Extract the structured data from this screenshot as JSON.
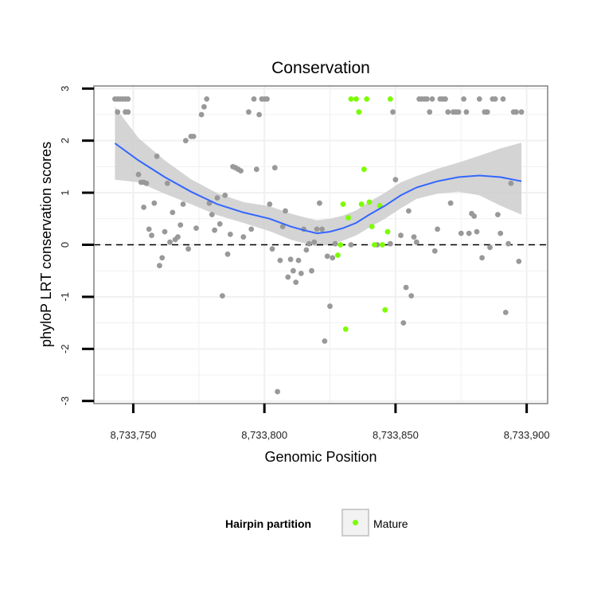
{
  "chart_data": {
    "type": "scatter",
    "title": "Conservation",
    "xlabel": "Genomic Position",
    "ylabel": "phyloP LRT conservation scores",
    "xlim": [
      8733735,
      8733908
    ],
    "ylim": [
      -3.05,
      3.05
    ],
    "x_ticks": [
      8733750,
      8733800,
      8733850,
      8733900
    ],
    "x_tick_labels": [
      "8,733,750",
      "8,733,800",
      "8,733,850",
      "8,733,900"
    ],
    "y_ticks": [
      -3,
      -2,
      -1,
      0,
      1,
      2,
      3
    ],
    "y_tick_labels": [
      "-3",
      "-2",
      "-1",
      "0",
      "1",
      "2",
      "3"
    ],
    "grid": true,
    "reference_line": {
      "y": 0,
      "style": "dashed",
      "color": "#000000"
    },
    "legend": {
      "title": "Hairpin partition",
      "placement": "bottom",
      "entries": [
        {
          "label": "Mature",
          "color": "#7cfc00"
        }
      ]
    },
    "colors": {
      "panel": "#ffffff",
      "grid": "#f0f0f0",
      "other_points": "#999999",
      "mature_points": "#7cfc00",
      "smooth_line": "#3366ff",
      "ribbon": "#cccccc"
    },
    "series": [
      {
        "name": "",
        "color": "#999999",
        "points": [
          [
            8733743,
            2.8
          ],
          [
            8733744,
            2.8
          ],
          [
            8733745,
            2.8
          ],
          [
            8733746,
            2.8
          ],
          [
            8733747,
            2.8
          ],
          [
            8733748,
            2.8
          ],
          [
            8733744,
            2.55
          ],
          [
            8733747,
            2.55
          ],
          [
            8733748,
            2.55
          ],
          [
            8733752,
            1.35
          ],
          [
            8733753,
            1.2
          ],
          [
            8733754,
            1.2
          ],
          [
            8733755,
            1.18
          ],
          [
            8733754,
            0.72
          ],
          [
            8733756,
            0.3
          ],
          [
            8733757,
            0.18
          ],
          [
            8733758,
            0.8
          ],
          [
            8733759,
            1.7
          ],
          [
            8733760,
            -0.4
          ],
          [
            8733761,
            -0.25
          ],
          [
            8733762,
            0.25
          ],
          [
            8733763,
            1.18
          ],
          [
            8733764,
            0.05
          ],
          [
            8733765,
            0.62
          ],
          [
            8733766,
            0.1
          ],
          [
            8733767,
            0.15
          ],
          [
            8733768,
            0.38
          ],
          [
            8733769,
            0.78
          ],
          [
            8733770,
            2.0
          ],
          [
            8733771,
            -0.08
          ],
          [
            8733772,
            2.08
          ],
          [
            8733773,
            2.08
          ],
          [
            8733774,
            0.32
          ],
          [
            8733776,
            2.5
          ],
          [
            8733777,
            2.65
          ],
          [
            8733778,
            2.8
          ],
          [
            8733779,
            0.8
          ],
          [
            8733780,
            0.58
          ],
          [
            8733781,
            0.28
          ],
          [
            8733782,
            0.9
          ],
          [
            8733783,
            0.4
          ],
          [
            8733784,
            -0.98
          ],
          [
            8733785,
            0.95
          ],
          [
            8733786,
            -0.18
          ],
          [
            8733787,
            0.2
          ],
          [
            8733788,
            1.5
          ],
          [
            8733789,
            1.48
          ],
          [
            8733790,
            1.45
          ],
          [
            8733791,
            1.42
          ],
          [
            8733792,
            0.15
          ],
          [
            8733794,
            2.55
          ],
          [
            8733795,
            0.3
          ],
          [
            8733796,
            2.8
          ],
          [
            8733797,
            1.45
          ],
          [
            8733798,
            2.5
          ],
          [
            8733799,
            2.8
          ],
          [
            8733800,
            2.8
          ],
          [
            8733801,
            2.8
          ],
          [
            8733802,
            0.78
          ],
          [
            8733803,
            -0.08
          ],
          [
            8733804,
            1.48
          ],
          [
            8733805,
            -2.82
          ],
          [
            8733806,
            -0.3
          ],
          [
            8733807,
            0.35
          ],
          [
            8733808,
            0.65
          ],
          [
            8733809,
            -0.62
          ],
          [
            8733810,
            -0.28
          ],
          [
            8733811,
            -0.5
          ],
          [
            8733812,
            -0.72
          ],
          [
            8733813,
            -0.3
          ],
          [
            8733814,
            -0.55
          ],
          [
            8733815,
            0.3
          ],
          [
            8733816,
            -0.1
          ],
          [
            8733817,
            0.02
          ],
          [
            8733818,
            -0.5
          ],
          [
            8733819,
            0.05
          ],
          [
            8733820,
            0.3
          ],
          [
            8733821,
            0.8
          ],
          [
            8733822,
            0.3
          ],
          [
            8733823,
            -1.85
          ],
          [
            8733824,
            -0.22
          ],
          [
            8733825,
            -1.18
          ],
          [
            8733826,
            -0.25
          ],
          [
            8733827,
            0.02
          ],
          [
            8733833,
            0.0
          ],
          [
            8733843,
            0.0
          ],
          [
            8733848,
            0.02
          ],
          [
            8733849,
            2.55
          ],
          [
            8733850,
            1.25
          ],
          [
            8733852,
            0.18
          ],
          [
            8733853,
            -1.5
          ],
          [
            8733854,
            -0.82
          ],
          [
            8733855,
            0.65
          ],
          [
            8733856,
            -0.98
          ],
          [
            8733857,
            0.15
          ],
          [
            8733858,
            0.05
          ],
          [
            8733859,
            2.8
          ],
          [
            8733860,
            2.8
          ],
          [
            8733861,
            2.8
          ],
          [
            8733862,
            2.8
          ],
          [
            8733863,
            2.55
          ],
          [
            8733864,
            2.8
          ],
          [
            8733865,
            -0.12
          ],
          [
            8733866,
            0.3
          ],
          [
            8733867,
            2.8
          ],
          [
            8733868,
            2.8
          ],
          [
            8733869,
            2.8
          ],
          [
            8733870,
            2.55
          ],
          [
            8733871,
            0.8
          ],
          [
            8733872,
            2.55
          ],
          [
            8733873,
            2.55
          ],
          [
            8733874,
            2.55
          ],
          [
            8733875,
            0.22
          ],
          [
            8733876,
            2.8
          ],
          [
            8733877,
            2.55
          ],
          [
            8733878,
            0.22
          ],
          [
            8733879,
            0.6
          ],
          [
            8733880,
            0.55
          ],
          [
            8733881,
            0.25
          ],
          [
            8733882,
            2.8
          ],
          [
            8733883,
            -0.25
          ],
          [
            8733884,
            2.55
          ],
          [
            8733885,
            2.55
          ],
          [
            8733886,
            -0.05
          ],
          [
            8733887,
            2.8
          ],
          [
            8733888,
            2.8
          ],
          [
            8733889,
            0.58
          ],
          [
            8733890,
            0.22
          ],
          [
            8733891,
            2.8
          ],
          [
            8733892,
            -1.3
          ],
          [
            8733893,
            0.02
          ],
          [
            8733894,
            1.18
          ],
          [
            8733895,
            2.55
          ],
          [
            8733896,
            2.55
          ],
          [
            8733897,
            -0.32
          ],
          [
            8733898,
            2.55
          ]
        ]
      },
      {
        "name": "Mature",
        "color": "#7cfc00",
        "points": [
          [
            8733828,
            -0.2
          ],
          [
            8733829,
            0.0
          ],
          [
            8733830,
            0.78
          ],
          [
            8733831,
            -1.62
          ],
          [
            8733832,
            0.52
          ],
          [
            8733833,
            2.8
          ],
          [
            8733835,
            2.8
          ],
          [
            8733836,
            2.55
          ],
          [
            8733837,
            0.78
          ],
          [
            8733838,
            1.45
          ],
          [
            8733839,
            2.8
          ],
          [
            8733840,
            0.82
          ],
          [
            8733841,
            0.35
          ],
          [
            8733842,
            0.0
          ],
          [
            8733844,
            0.75
          ],
          [
            8733845,
            0.0
          ],
          [
            8733846,
            -1.25
          ],
          [
            8733847,
            0.25
          ],
          [
            8733848,
            2.8
          ]
        ]
      }
    ],
    "smooth": {
      "x": [
        8733743,
        8733752,
        8733762,
        8733772,
        8733782,
        8733792,
        8733802,
        8733810,
        8733815,
        8733820,
        8733825,
        8733830,
        8733835,
        8733840,
        8733846,
        8733852,
        8733858,
        8733866,
        8733874,
        8733882,
        8733890,
        8733898
      ],
      "y": [
        1.95,
        1.62,
        1.3,
        1.02,
        0.78,
        0.62,
        0.5,
        0.35,
        0.28,
        0.22,
        0.25,
        0.32,
        0.42,
        0.58,
        0.75,
        0.95,
        1.1,
        1.22,
        1.3,
        1.33,
        1.3,
        1.22
      ],
      "lower": [
        1.25,
        1.2,
        0.98,
        0.78,
        0.57,
        0.42,
        0.26,
        0.1,
        0.03,
        -0.03,
        0.0,
        0.08,
        0.18,
        0.33,
        0.5,
        0.7,
        0.88,
        0.98,
        1.02,
        0.95,
        0.75,
        0.58
      ],
      "upper": [
        2.65,
        2.05,
        1.62,
        1.26,
        0.99,
        0.82,
        0.74,
        0.6,
        0.53,
        0.47,
        0.5,
        0.56,
        0.66,
        0.83,
        1.0,
        1.2,
        1.32,
        1.46,
        1.58,
        1.71,
        1.85,
        1.96
      ]
    }
  }
}
